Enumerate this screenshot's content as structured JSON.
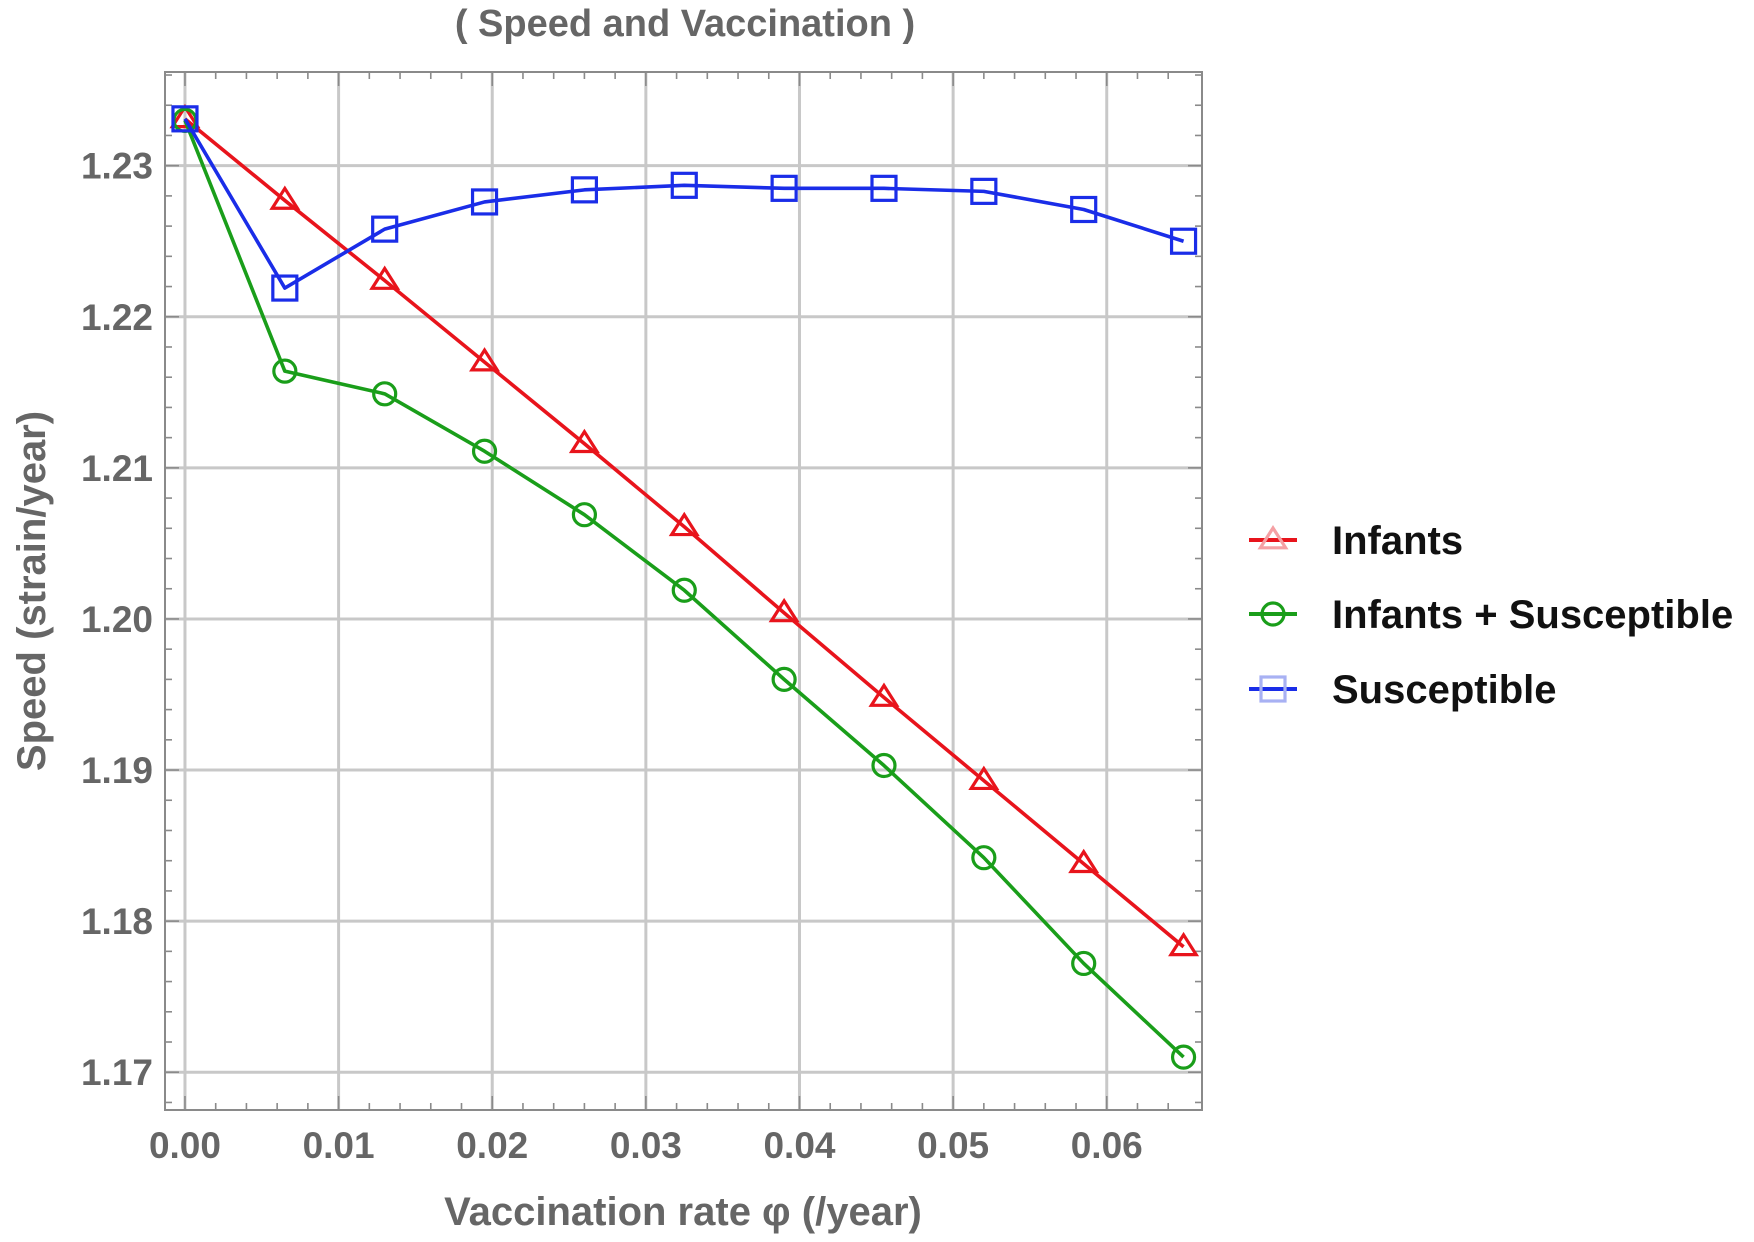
{
  "chart_data": {
    "type": "line",
    "title": "( Speed and Vaccination )",
    "xlabel": "Vaccination rate φ (/year)",
    "ylabel": "Speed  (strain/year)",
    "xlim": [
      -0.0013,
      0.0662
    ],
    "ylim": [
      1.1675,
      1.2362
    ],
    "x_ticks": [
      "0.00",
      "0.01",
      "0.02",
      "0.03",
      "0.04",
      "0.05",
      "0.06"
    ],
    "y_ticks": [
      "1.17",
      "1.18",
      "1.19",
      "1.20",
      "1.21",
      "1.22",
      "1.23"
    ],
    "grid": true,
    "legend_position": "right",
    "x": [
      0.0,
      0.0065,
      0.013,
      0.0195,
      0.026,
      0.0325,
      0.039,
      0.0455,
      0.052,
      0.0585,
      0.065
    ],
    "series": [
      {
        "name": "Infants",
        "color": "#e8141c",
        "marker": "triangle",
        "values": [
          1.2331,
          1.2277,
          1.2224,
          1.217,
          1.2116,
          1.2061,
          1.2004,
          1.1948,
          1.1893,
          1.1838,
          1.1783
        ]
      },
      {
        "name": "Infants + Susceptible",
        "color": "#1a9e1a",
        "marker": "circle",
        "values": [
          1.233,
          1.2164,
          1.2149,
          1.2111,
          1.2069,
          1.2019,
          1.196,
          1.1903,
          1.1842,
          1.1772,
          1.171
        ]
      },
      {
        "name": "Susceptible",
        "color": "#1a2de8",
        "marker": "square",
        "values": [
          1.2331,
          1.2219,
          1.2258,
          1.2276,
          1.2284,
          1.2287,
          1.2285,
          1.2285,
          1.2283,
          1.2271,
          1.225
        ]
      }
    ]
  }
}
